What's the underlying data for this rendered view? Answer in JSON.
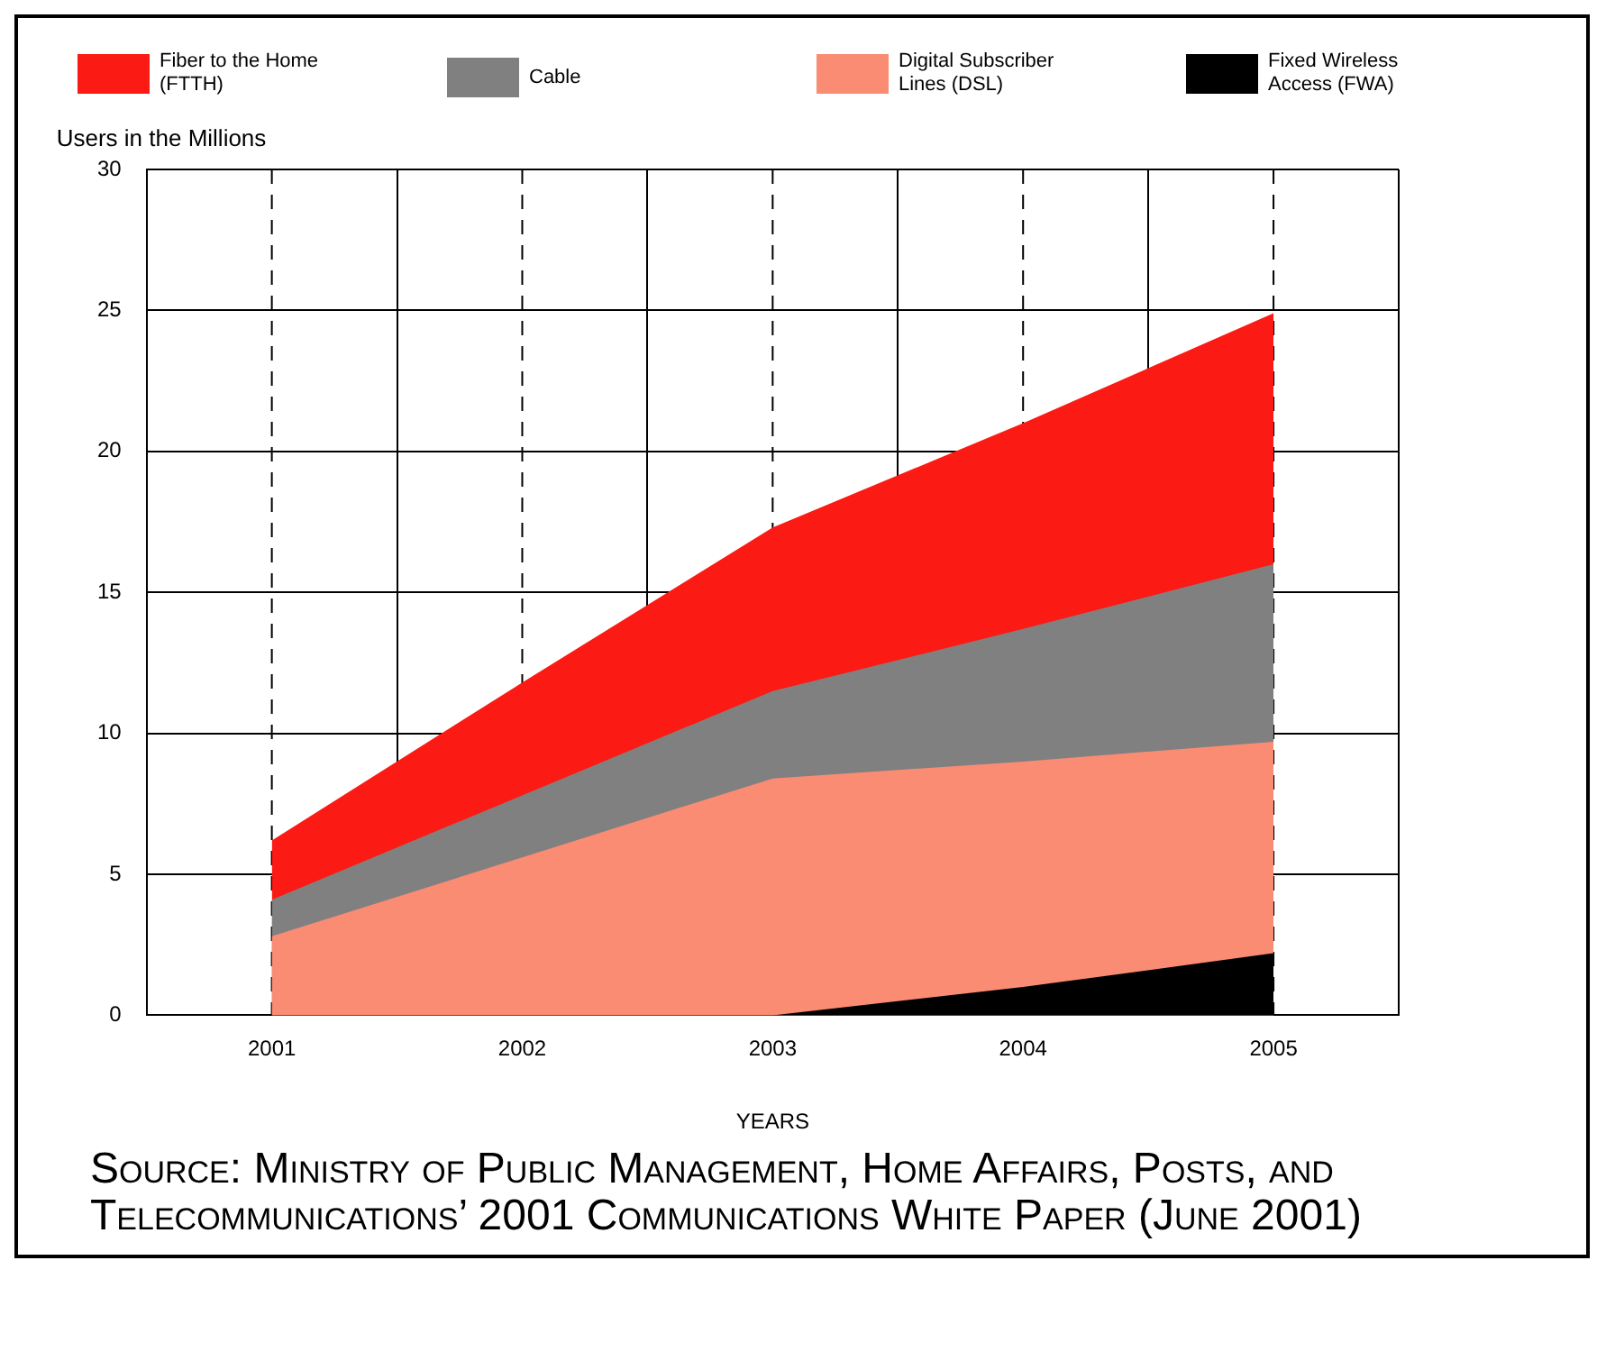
{
  "chart_data": {
    "type": "area",
    "stacked": true,
    "ylabel": "Users in the Millions",
    "xlabel": "YEARS",
    "categories": [
      "2001",
      "2002",
      "2003",
      "2004",
      "2005"
    ],
    "series": [
      {
        "name": "Fixed Wireless Access (FWA)",
        "color": "#000000",
        "values": [
          null,
          null,
          0,
          1.0,
          2.2
        ]
      },
      {
        "name": "Digital Subscriber Lines (DSL)",
        "color": "#fa8c73",
        "values": [
          2.8,
          5.6,
          8.4,
          8.0,
          7.5
        ]
      },
      {
        "name": "Cable",
        "color": "#808080",
        "values": [
          1.3,
          2.2,
          3.1,
          4.7,
          6.3
        ]
      },
      {
        "name": "Fiber to the Home (FTTH)",
        "color": "#fc1a14",
        "values": [
          2.1,
          4.0,
          5.8,
          7.3,
          8.9
        ]
      }
    ],
    "ylim": [
      0,
      30
    ],
    "yticks": [
      0,
      5,
      10,
      15,
      20,
      25,
      30
    ],
    "grid": true,
    "legend": "top",
    "annotations": [
      "Source: Ministry of Public Management, Home Affairs, Posts, and Telecommunications’ 2001 Communications White Paper (June 2001)"
    ]
  }
}
